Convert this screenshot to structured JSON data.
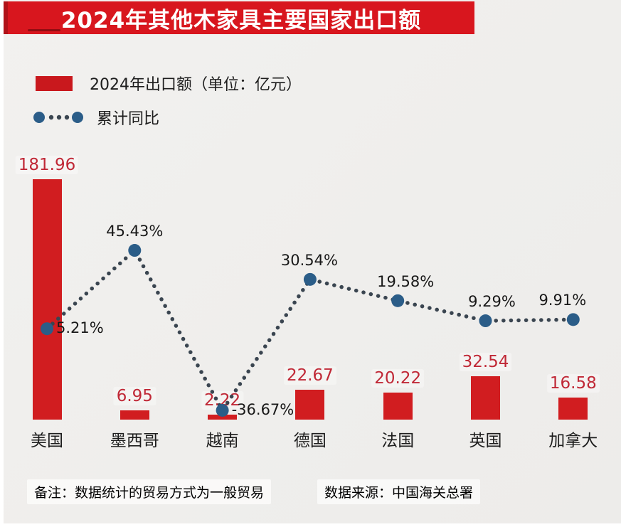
{
  "title": "2024年其他木家具主要国家出口额",
  "legend": {
    "bar_label": "2024年出口额（单位：亿元）",
    "line_label": "累计同比"
  },
  "chart_data": {
    "type": "bar",
    "subtype": "bar+line combo",
    "title": "2024年其他木家具主要国家出口额",
    "categories": [
      "美国",
      "墨西哥",
      "越南",
      "德国",
      "法国",
      "英国",
      "加拿大"
    ],
    "series": [
      {
        "name": "2024年出口额（单位：亿元）",
        "type": "bar",
        "values": [
          181.96,
          6.95,
          2.22,
          22.67,
          20.22,
          32.54,
          16.58
        ],
        "unit": "亿元"
      },
      {
        "name": "累计同比",
        "type": "line",
        "style": "dotted",
        "values": [
          5.21,
          45.43,
          -36.67,
          30.54,
          19.58,
          9.29,
          9.91
        ],
        "unit": "%"
      }
    ],
    "grid": false,
    "axes_visible": false,
    "legend_position": "top-left",
    "data_labels_visible": true
  },
  "footer": {
    "note": "备注：数据统计的贸易方式为一般贸易",
    "source": "数据来源：中国海关总署"
  },
  "colors": {
    "banner": "#d8161e",
    "banner_edge": "#b01218",
    "bar": "#d11d20",
    "bar_label": "#c02836",
    "dot": "#2b5d88",
    "line_dots": "#3a4550",
    "text": "#1d1d1d",
    "footer_text": "#8b8b8b",
    "background": "#efeeec"
  }
}
